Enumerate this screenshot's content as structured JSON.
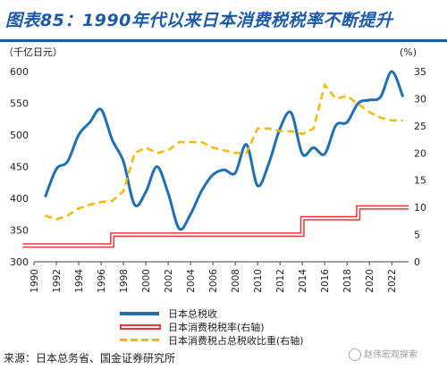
{
  "figure": {
    "title": "图表85：1990年代以来日本消费税税率不断提升",
    "source": "来源：日本总务省、国金证券研究所",
    "watermark": "赵伟宏观探索"
  },
  "chart_data": {
    "type": "line",
    "title": "",
    "ylabel_left": "（千亿日元）",
    "ylabel_right": "(%)",
    "x_ticks": [
      "1990",
      "1992",
      "1994",
      "1996",
      "1998",
      "2000",
      "2002",
      "2004",
      "2006",
      "2008",
      "2010",
      "2012",
      "2014",
      "2016",
      "2018",
      "2020",
      "2022"
    ],
    "xlim": [
      1990,
      2023.5
    ],
    "ylim_left": [
      300,
      600
    ],
    "y_ticks_left": [
      "300",
      "350",
      "400",
      "450",
      "500",
      "550",
      "600"
    ],
    "ylim_right": [
      0,
      35
    ],
    "y_ticks_right": [
      "0",
      "5",
      "10",
      "15",
      "20",
      "25",
      "30",
      "35"
    ],
    "legend_position": "bottom",
    "series": [
      {
        "name": "日本总税收",
        "axis": "left",
        "style": "solid",
        "color": "#1f6fb4",
        "points": [
          [
            1991,
            402
          ],
          [
            1992,
            446
          ],
          [
            1993,
            458
          ],
          [
            1994,
            500
          ],
          [
            1995,
            520
          ],
          [
            1996,
            540
          ],
          [
            1997,
            492
          ],
          [
            1998,
            458
          ],
          [
            1999,
            390
          ],
          [
            2000,
            410
          ],
          [
            2001,
            450
          ],
          [
            2002,
            408
          ],
          [
            2003,
            352
          ],
          [
            2004,
            375
          ],
          [
            2005,
            412
          ],
          [
            2006,
            437
          ],
          [
            2007,
            445
          ],
          [
            2008,
            440
          ],
          [
            2009,
            485
          ],
          [
            2010,
            420
          ],
          [
            2011,
            455
          ],
          [
            2012,
            510
          ],
          [
            2013,
            535
          ],
          [
            2014,
            470
          ],
          [
            2015,
            480
          ],
          [
            2016,
            470
          ],
          [
            2017,
            515
          ],
          [
            2018,
            520
          ],
          [
            2019,
            550
          ],
          [
            2020,
            555
          ],
          [
            2021,
            560
          ],
          [
            2022,
            600
          ],
          [
            2023,
            560
          ]
        ]
      },
      {
        "name": "日本消费税税率(右轴)",
        "axis": "right",
        "style": "step",
        "color": "#e8373a",
        "points": [
          [
            1989,
            3
          ],
          [
            1997,
            3
          ],
          [
            1997,
            5
          ],
          [
            2014,
            5
          ],
          [
            2014,
            8
          ],
          [
            2019,
            8
          ],
          [
            2019,
            10
          ],
          [
            2023.5,
            10
          ]
        ]
      },
      {
        "name": "日本消费税占总税收比重(右轴)",
        "axis": "right",
        "style": "dashed",
        "color": "#f5b800",
        "points": [
          [
            1991,
            8.5
          ],
          [
            1992,
            7.8
          ],
          [
            1993,
            8.5
          ],
          [
            1994,
            9.8
          ],
          [
            1995,
            10.5
          ],
          [
            1996,
            11.0
          ],
          [
            1997,
            11.2
          ],
          [
            1998,
            13.0
          ],
          [
            1999,
            20.0
          ],
          [
            2000,
            21.0
          ],
          [
            2001,
            20.0
          ],
          [
            2002,
            20.5
          ],
          [
            2003,
            22.0
          ],
          [
            2004,
            22.0
          ],
          [
            2005,
            22.0
          ],
          [
            2006,
            21.0
          ],
          [
            2007,
            20.5
          ],
          [
            2008,
            20.0
          ],
          [
            2009,
            20.0
          ],
          [
            2010,
            24.5
          ],
          [
            2011,
            24.5
          ],
          [
            2012,
            24.0
          ],
          [
            2013,
            24.0
          ],
          [
            2014,
            23.5
          ],
          [
            2015,
            24.5
          ],
          [
            2016,
            32.5
          ],
          [
            2017,
            30.0
          ],
          [
            2018,
            30.5
          ],
          [
            2019,
            29.0
          ],
          [
            2020,
            27.5
          ],
          [
            2021,
            26.5
          ],
          [
            2022,
            26.0
          ],
          [
            2023,
            26.0
          ]
        ]
      }
    ]
  }
}
